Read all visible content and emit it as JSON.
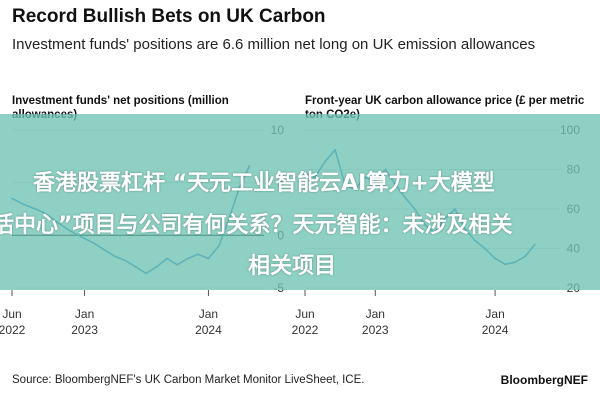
{
  "header": {
    "title": "Record Bullish Bets on UK Carbon",
    "subtitle": "Investment funds' positions are 6.6 million net long on UK emission allowances"
  },
  "overlay": {
    "line1": "香港股票杠杆 “天元工业智能云AI算力+大模型",
    "line2": "活中心”项目与公司有何关系？天元智能：未涉及相关",
    "line3": "相关项目"
  },
  "footer": {
    "source": "Source: BloombergNEF's UK Carbon Market Monitor LiveSheet, ICE.",
    "brand": "BloombergNEF"
  },
  "colors": {
    "line": "#2a78c6",
    "zero_line": "#000000",
    "overlay": "#6ec4b4"
  },
  "chart_data": [
    {
      "type": "line",
      "title": "Investment funds' net positions (million allowances)",
      "ylim": [
        -5,
        10
      ],
      "yticks": [
        10,
        5,
        0,
        -5
      ],
      "ytick_labels": [
        "10",
        "5",
        "0",
        "-5"
      ],
      "xlim": [
        "2022-06-01",
        "2024-06-01"
      ],
      "xticks": [
        {
          "date": "2022-06-01",
          "label1": "Jun",
          "label2": "2022"
        },
        {
          "date": "2023-01-01",
          "label1": "Jan",
          "label2": "2023"
        },
        {
          "date": "2024-01-01",
          "label1": "Jan",
          "label2": "2024"
        }
      ],
      "series": [
        {
          "x": [
            "2022-06-01",
            "2022-07-01",
            "2022-08-01",
            "2022-09-01",
            "2022-10-01",
            "2022-11-01",
            "2022-12-01",
            "2023-01-01",
            "2023-02-01",
            "2023-03-01",
            "2023-04-01",
            "2023-05-01",
            "2023-06-01",
            "2023-07-01",
            "2023-08-01",
            "2023-09-01",
            "2023-10-01",
            "2023-11-01",
            "2023-12-01",
            "2024-01-01",
            "2024-02-01",
            "2024-03-01",
            "2024-04-01",
            "2024-05-01"
          ],
          "values": [
            3.5,
            3.0,
            2.6,
            2.2,
            1.5,
            0.8,
            0.2,
            -0.3,
            -0.8,
            -1.4,
            -2.0,
            -2.4,
            -3.0,
            -3.6,
            -3.0,
            -2.2,
            -2.8,
            -2.2,
            -1.8,
            -2.2,
            -1.0,
            1.5,
            4.5,
            6.6
          ]
        }
      ]
    },
    {
      "type": "line",
      "title": "Front-year UK carbon allowance price (£ per metric ton CO2e)",
      "ylim": [
        20,
        100
      ],
      "yticks": [
        100,
        80,
        60,
        40,
        20
      ],
      "ytick_labels": [
        "100",
        "80",
        "60",
        "40",
        "20"
      ],
      "xlim": [
        "2022-06-01",
        "2024-06-01"
      ],
      "xticks": [
        {
          "date": "2022-06-01",
          "label1": "Jun",
          "label2": "2022"
        },
        {
          "date": "2023-01-01",
          "label1": "Jan",
          "label2": "2023"
        },
        {
          "date": "2024-01-01",
          "label1": "Jan",
          "label2": "2024"
        }
      ],
      "series": [
        {
          "x": [
            "2022-06-01",
            "2022-07-01",
            "2022-08-01",
            "2022-09-01",
            "2022-10-01",
            "2022-11-01",
            "2022-12-01",
            "2023-01-01",
            "2023-02-01",
            "2023-03-01",
            "2023-04-01",
            "2023-05-01",
            "2023-06-01",
            "2023-07-01",
            "2023-08-01",
            "2023-09-01",
            "2023-10-01",
            "2023-11-01",
            "2023-12-01",
            "2024-01-01",
            "2024-02-01",
            "2024-03-01",
            "2024-04-01",
            "2024-05-01"
          ],
          "values": [
            78,
            76,
            84,
            90,
            72,
            70,
            76,
            74,
            80,
            73,
            66,
            60,
            52,
            48,
            55,
            60,
            50,
            44,
            40,
            35,
            32,
            33,
            36,
            42
          ]
        }
      ]
    }
  ]
}
